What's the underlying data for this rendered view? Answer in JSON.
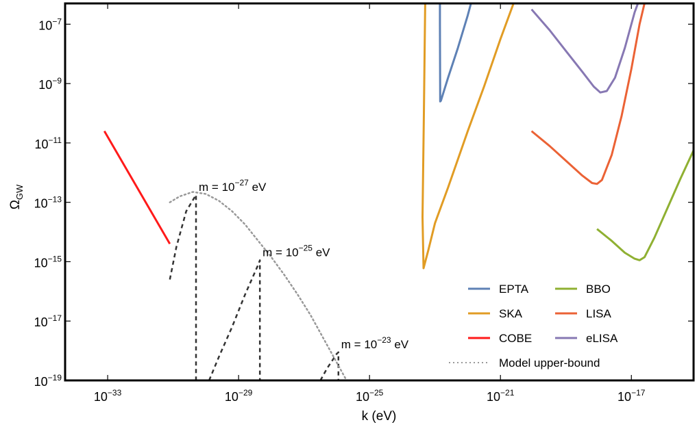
{
  "chart_data": {
    "type": "line",
    "title": "",
    "xlabel": "k (eV)",
    "ylabel": "Ω_GW",
    "x_scale": "log",
    "y_scale": "log",
    "xlim_log10": [
      -34.3,
      -15.1
    ],
    "ylim_log10": [
      -19,
      -6.3
    ],
    "grid": false,
    "legend_position": "bottom-right",
    "x_ticks": [
      {
        "base": "10",
        "exp": "−33",
        "log10": -33
      },
      {
        "base": "10",
        "exp": "−29",
        "log10": -29
      },
      {
        "base": "10",
        "exp": "−25",
        "log10": -25
      },
      {
        "base": "10",
        "exp": "−21",
        "log10": -21
      },
      {
        "base": "10",
        "exp": "−17",
        "log10": -17
      }
    ],
    "y_ticks": [
      {
        "base": "10",
        "exp": "−7",
        "log10": -7
      },
      {
        "base": "10",
        "exp": "−9",
        "log10": -9
      },
      {
        "base": "10",
        "exp": "−11",
        "log10": -11
      },
      {
        "base": "10",
        "exp": "−13",
        "log10": -13
      },
      {
        "base": "10",
        "exp": "−15",
        "log10": -15
      },
      {
        "base": "10",
        "exp": "−17",
        "log10": -17
      },
      {
        "base": "10",
        "exp": "−19",
        "log10": -19
      }
    ],
    "series": [
      {
        "name": "EPTA",
        "color": "#5e81b5",
        "dash": "solid",
        "points_log10": [
          [
            -22.85,
            -6.3
          ],
          [
            -22.85,
            -7.0
          ],
          [
            -22.84,
            -9.6
          ],
          [
            -22.82,
            -9.58
          ],
          [
            -22.6,
            -8.8
          ],
          [
            -22.3,
            -7.8
          ],
          [
            -22.0,
            -6.7
          ],
          [
            -21.9,
            -6.3
          ]
        ]
      },
      {
        "name": "SKA",
        "color": "#e19c24",
        "dash": "solid",
        "points_log10": [
          [
            -23.3,
            -6.3
          ],
          [
            -23.34,
            -10.0
          ],
          [
            -23.38,
            -13.5
          ],
          [
            -23.35,
            -15.22
          ],
          [
            -23.2,
            -14.6
          ],
          [
            -23.0,
            -13.7
          ],
          [
            -22.6,
            -12.5
          ],
          [
            -22.0,
            -10.6
          ],
          [
            -21.5,
            -9.1
          ],
          [
            -21.0,
            -7.5
          ],
          [
            -20.6,
            -6.3
          ]
        ]
      },
      {
        "name": "COBE",
        "color": "#ff1a1a",
        "dash": "solid",
        "points_log10": [
          [
            -33.1,
            -10.6
          ],
          [
            -31.1,
            -14.4
          ]
        ]
      },
      {
        "name": "BBO",
        "color": "#8fb032",
        "dash": "solid",
        "points_log10": [
          [
            -18.05,
            -13.9
          ],
          [
            -17.6,
            -14.3
          ],
          [
            -17.2,
            -14.7
          ],
          [
            -16.9,
            -14.9
          ],
          [
            -16.75,
            -14.95
          ],
          [
            -16.6,
            -14.85
          ],
          [
            -16.3,
            -14.2
          ],
          [
            -15.9,
            -13.2
          ],
          [
            -15.5,
            -12.2
          ],
          [
            -15.1,
            -11.25
          ]
        ]
      },
      {
        "name": "LISA",
        "color": "#eb6235",
        "dash": "solid",
        "points_log10": [
          [
            -20.05,
            -10.6
          ],
          [
            -19.5,
            -11.1
          ],
          [
            -19.0,
            -11.6
          ],
          [
            -18.5,
            -12.1
          ],
          [
            -18.2,
            -12.35
          ],
          [
            -18.05,
            -12.38
          ],
          [
            -17.9,
            -12.25
          ],
          [
            -17.6,
            -11.4
          ],
          [
            -17.3,
            -10.1
          ],
          [
            -17.0,
            -8.5
          ],
          [
            -16.75,
            -7.0
          ],
          [
            -16.6,
            -6.3
          ]
        ]
      },
      {
        "name": "eLISA",
        "color": "#8778b3",
        "dash": "solid",
        "points_log10": [
          [
            -20.05,
            -6.5
          ],
          [
            -19.5,
            -7.2
          ],
          [
            -19.0,
            -7.9
          ],
          [
            -18.5,
            -8.6
          ],
          [
            -18.15,
            -9.1
          ],
          [
            -17.95,
            -9.3
          ],
          [
            -17.75,
            -9.25
          ],
          [
            -17.5,
            -8.8
          ],
          [
            -17.2,
            -7.8
          ],
          [
            -16.9,
            -6.6
          ],
          [
            -16.8,
            -6.3
          ]
        ]
      },
      {
        "name": "Model upper-bound",
        "color": "#999999",
        "dash": "dotted",
        "points_log10": [
          [
            -31.1,
            -13.0
          ],
          [
            -30.8,
            -12.8
          ],
          [
            -30.4,
            -12.65
          ],
          [
            -30.0,
            -12.72
          ],
          [
            -29.6,
            -12.95
          ],
          [
            -29.2,
            -13.3
          ],
          [
            -28.8,
            -13.75
          ],
          [
            -28.4,
            -14.3
          ],
          [
            -28.0,
            -14.85
          ],
          [
            -27.6,
            -15.45
          ],
          [
            -27.2,
            -16.1
          ],
          [
            -26.8,
            -16.8
          ],
          [
            -26.4,
            -17.6
          ],
          [
            -26.0,
            -18.4
          ],
          [
            -25.7,
            -19.0
          ]
        ]
      }
    ],
    "model_curves": [
      {
        "color": "#333333",
        "dash": "dashed",
        "points_log10": [
          [
            -31.1,
            -15.6
          ],
          [
            -30.9,
            -14.5
          ],
          [
            -30.6,
            -13.3
          ],
          [
            -30.3,
            -12.75
          ],
          [
            -30.3,
            -19.0
          ]
        ]
      },
      {
        "color": "#333333",
        "dash": "dashed",
        "points_log10": [
          [
            -29.9,
            -19.0
          ],
          [
            -29.6,
            -18.2
          ],
          [
            -29.2,
            -17.2
          ],
          [
            -28.8,
            -16.1
          ],
          [
            -28.4,
            -15.1
          ],
          [
            -28.35,
            -14.95
          ],
          [
            -28.35,
            -19.0
          ]
        ]
      },
      {
        "color": "#333333",
        "dash": "dashed",
        "points_log10": [
          [
            -26.5,
            -19.0
          ],
          [
            -26.3,
            -18.6
          ],
          [
            -26.0,
            -18.1
          ],
          [
            -25.95,
            -18.05
          ],
          [
            -25.95,
            -19.0
          ]
        ]
      }
    ],
    "annotations": [
      {
        "id": "m27",
        "prefix": "m = 10",
        "exp": "−27",
        "suffix": " eV",
        "at_log10": [
          -30.3,
          -12.75
        ]
      },
      {
        "id": "m25",
        "prefix": "m = 10",
        "exp": "−25",
        "suffix": " eV",
        "at_log10": [
          -28.35,
          -14.95
        ]
      },
      {
        "id": "m23",
        "prefix": "m = 10",
        "exp": "−23",
        "suffix": " eV",
        "at_log10": [
          -25.95,
          -18.05
        ]
      }
    ]
  }
}
